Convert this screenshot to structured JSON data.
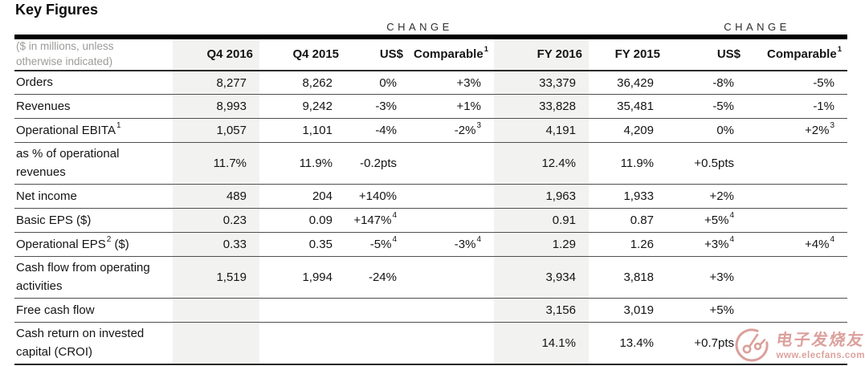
{
  "title": "Key Figures",
  "change_labels": [
    "CHANGE",
    "CHANGE"
  ],
  "colors": {
    "highlight_column_bg": "#f2f2f0",
    "thick_rule": "#000000",
    "row_rule": "#4f4f4f",
    "note_text": "#9b9b99",
    "watermark_red": "#bf544b"
  },
  "table": {
    "note": "($ in millions, unless otherwise indicated)",
    "columns": [
      {
        "label": "Q4 2016",
        "sup": ""
      },
      {
        "label": "Q4 2015",
        "sup": ""
      },
      {
        "label": "US$",
        "sup": ""
      },
      {
        "label": "Comparable",
        "sup": "1"
      },
      {
        "label": "FY 2016",
        "sup": ""
      },
      {
        "label": "FY 2015",
        "sup": ""
      },
      {
        "label": "US$",
        "sup": ""
      },
      {
        "label": "Comparable",
        "sup": "1"
      }
    ],
    "rows": [
      {
        "label": {
          "pre": "Orders",
          "sup": "",
          "post": ""
        },
        "cells": [
          {
            "v": "8,277"
          },
          {
            "v": "8,262"
          },
          {
            "v": "0%"
          },
          {
            "v": "+3%"
          },
          {
            "v": "33,379"
          },
          {
            "v": "36,429"
          },
          {
            "v": "-8%"
          },
          {
            "v": "-5%"
          }
        ]
      },
      {
        "label": {
          "pre": "Revenues",
          "sup": "",
          "post": ""
        },
        "cells": [
          {
            "v": "8,993"
          },
          {
            "v": "9,242"
          },
          {
            "v": "-3%"
          },
          {
            "v": "+1%"
          },
          {
            "v": "33,828"
          },
          {
            "v": "35,481"
          },
          {
            "v": "-5%"
          },
          {
            "v": "-1%"
          }
        ]
      },
      {
        "label": {
          "pre": "Operational EBITA",
          "sup": "1",
          "post": ""
        },
        "cells": [
          {
            "v": "1,057"
          },
          {
            "v": "1,101"
          },
          {
            "v": "-4%"
          },
          {
            "v": "-2%",
            "sup": "3"
          },
          {
            "v": "4,191"
          },
          {
            "v": "4,209"
          },
          {
            "v": "0%"
          },
          {
            "v": "+2%",
            "sup": "3"
          }
        ]
      },
      {
        "label": {
          "pre": "as % of operational revenues",
          "sup": "",
          "post": ""
        },
        "cells": [
          {
            "v": "11.7%"
          },
          {
            "v": "11.9%"
          },
          {
            "v": "-0.2pts"
          },
          {
            "v": ""
          },
          {
            "v": "12.4%"
          },
          {
            "v": "11.9%"
          },
          {
            "v": "+0.5pts"
          },
          {
            "v": ""
          }
        ]
      },
      {
        "label": {
          "pre": "Net income",
          "sup": "",
          "post": ""
        },
        "cells": [
          {
            "v": "489"
          },
          {
            "v": "204"
          },
          {
            "v": "+140%"
          },
          {
            "v": ""
          },
          {
            "v": "1,963"
          },
          {
            "v": "1,933"
          },
          {
            "v": "+2%"
          },
          {
            "v": ""
          }
        ]
      },
      {
        "label": {
          "pre": "Basic EPS ($)",
          "sup": "",
          "post": ""
        },
        "cells": [
          {
            "v": "0.23"
          },
          {
            "v": "0.09"
          },
          {
            "v": "+147%",
            "sup": "4"
          },
          {
            "v": ""
          },
          {
            "v": "0.91"
          },
          {
            "v": "0.87"
          },
          {
            "v": "+5%",
            "sup": "4"
          },
          {
            "v": ""
          }
        ]
      },
      {
        "label": {
          "pre": "Operational EPS",
          "sup": "2",
          "post": " ($)"
        },
        "cells": [
          {
            "v": "0.33"
          },
          {
            "v": "0.35"
          },
          {
            "v": "-5%",
            "sup": "4"
          },
          {
            "v": "-3%",
            "sup": "4"
          },
          {
            "v": "1.29"
          },
          {
            "v": "1.26"
          },
          {
            "v": "+3%",
            "sup": "4"
          },
          {
            "v": "+4%",
            "sup": "4"
          }
        ]
      },
      {
        "label": {
          "pre": "Cash flow from operating activities",
          "sup": "",
          "post": ""
        },
        "cells": [
          {
            "v": "1,519"
          },
          {
            "v": "1,994"
          },
          {
            "v": "-24%"
          },
          {
            "v": ""
          },
          {
            "v": "3,934"
          },
          {
            "v": "3,818"
          },
          {
            "v": "+3%"
          },
          {
            "v": ""
          }
        ]
      },
      {
        "label": {
          "pre": "Free cash flow",
          "sup": "",
          "post": ""
        },
        "cells": [
          {
            "v": ""
          },
          {
            "v": ""
          },
          {
            "v": ""
          },
          {
            "v": ""
          },
          {
            "v": "3,156"
          },
          {
            "v": "3,019"
          },
          {
            "v": "+5%"
          },
          {
            "v": ""
          }
        ]
      },
      {
        "label": {
          "pre": "Cash return on invested capital (CROI)",
          "sup": "",
          "post": ""
        },
        "cells": [
          {
            "v": ""
          },
          {
            "v": ""
          },
          {
            "v": ""
          },
          {
            "v": ""
          },
          {
            "v": "14.1%"
          },
          {
            "v": "13.4%"
          },
          {
            "v": "+0.7pts"
          },
          {
            "v": ""
          }
        ]
      }
    ]
  },
  "watermark": {
    "site_name": "电子发烧友",
    "site_url": "www.elecfans.com"
  }
}
